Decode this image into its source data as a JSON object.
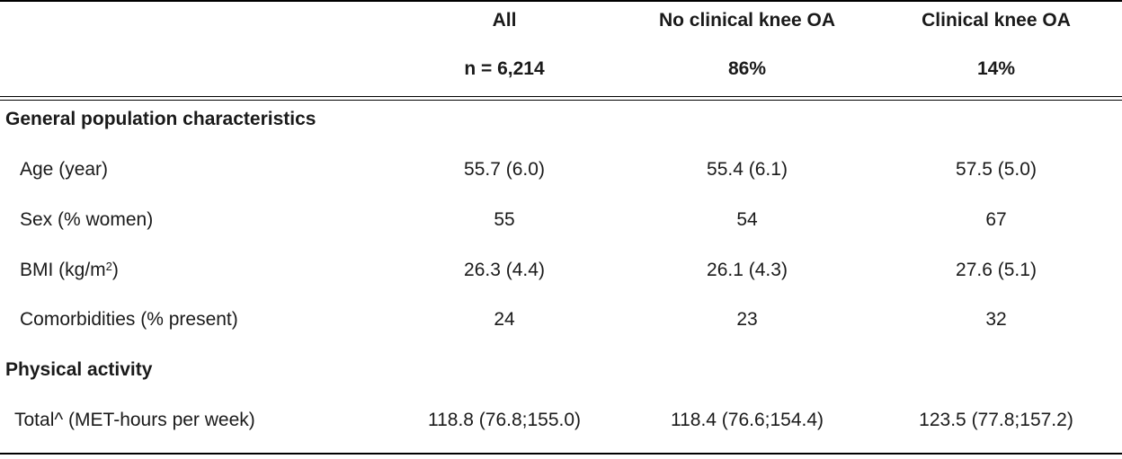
{
  "columns": {
    "all": {
      "label": "All",
      "sub": "n = 6,214"
    },
    "no_oa": {
      "label": "No clinical knee OA",
      "sub": "86%"
    },
    "oa": {
      "label": "Clinical knee OA",
      "sub": "14%"
    }
  },
  "sections": {
    "general": "General population characteristics",
    "physical": "Physical activity"
  },
  "rows": {
    "age": {
      "label": "Age (year)",
      "all": "55.7 (6.0)",
      "no_oa": "55.4 (6.1)",
      "oa": "57.5 (5.0)"
    },
    "sex": {
      "label": "Sex (% women)",
      "all": "55",
      "no_oa": "54",
      "oa": "67"
    },
    "bmi": {
      "label_pre": "BMI (kg/m",
      "label_sup": "2",
      "label_post": ")",
      "all": "26.3 (4.4)",
      "no_oa": "26.1 (4.3)",
      "oa": "27.6 (5.1)"
    },
    "comorb": {
      "label": "Comorbidities (% present)",
      "all": "24",
      "no_oa": "23",
      "oa": "32"
    },
    "total": {
      "label": "Total^ (MET-hours per week)",
      "all": "118.8 (76.8;155.0)",
      "no_oa": "118.4 (76.6;154.4)",
      "oa": "123.5 (77.8;157.2)"
    }
  }
}
